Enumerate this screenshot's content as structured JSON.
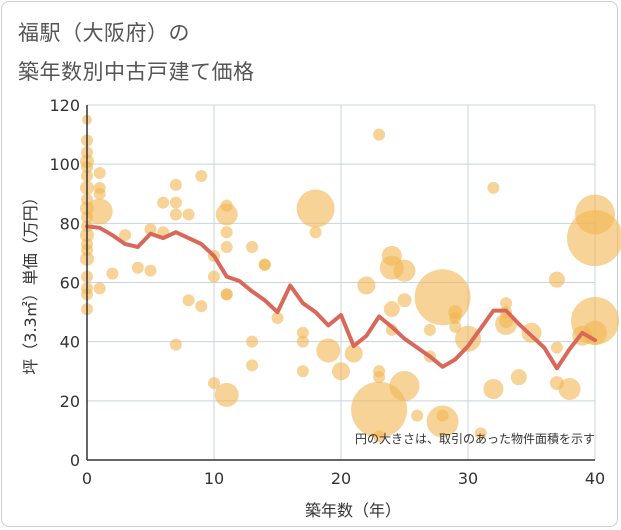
{
  "title_line1": "福駅（大阪府）の",
  "title_line2": "築年数別中古戸建て価格",
  "chart_data": {
    "type": "scatter",
    "xlabel": "築年数（年）",
    "ylabel": "坪（3.3㎡）単価（万円）",
    "xlim": [
      0,
      40
    ],
    "ylim": [
      0,
      120
    ],
    "xticks": [
      0,
      10,
      20,
      30,
      40
    ],
    "yticks": [
      0,
      20,
      40,
      60,
      80,
      100,
      120
    ],
    "grid": true,
    "annotation": "円の大きさは、取引のあった物件面積を示す",
    "colors": {
      "bubble": "#f2b552",
      "line": "#d9685a",
      "grid": "#c8d4de",
      "axis": "#333333"
    },
    "bubbles": [
      {
        "x": 0,
        "y": 115,
        "s": 5
      },
      {
        "x": 0,
        "y": 108,
        "s": 6
      },
      {
        "x": 0,
        "y": 104,
        "s": 6
      },
      {
        "x": 0,
        "y": 101,
        "s": 7
      },
      {
        "x": 0,
        "y": 99,
        "s": 6
      },
      {
        "x": 0,
        "y": 96,
        "s": 6
      },
      {
        "x": 0,
        "y": 92,
        "s": 7
      },
      {
        "x": 0,
        "y": 88,
        "s": 6
      },
      {
        "x": 0,
        "y": 85,
        "s": 7
      },
      {
        "x": 0,
        "y": 82,
        "s": 6
      },
      {
        "x": 0,
        "y": 79,
        "s": 6
      },
      {
        "x": 0,
        "y": 76,
        "s": 7
      },
      {
        "x": 0,
        "y": 73,
        "s": 6
      },
      {
        "x": 0,
        "y": 71,
        "s": 6
      },
      {
        "x": 0,
        "y": 68,
        "s": 7
      },
      {
        "x": 0,
        "y": 62,
        "s": 6
      },
      {
        "x": 0,
        "y": 58,
        "s": 6
      },
      {
        "x": 0,
        "y": 56,
        "s": 6
      },
      {
        "x": 0,
        "y": 51,
        "s": 6
      },
      {
        "x": 1,
        "y": 97,
        "s": 6
      },
      {
        "x": 1,
        "y": 92,
        "s": 6
      },
      {
        "x": 1,
        "y": 90,
        "s": 6
      },
      {
        "x": 1,
        "y": 84,
        "s": 13
      },
      {
        "x": 1,
        "y": 58,
        "s": 6
      },
      {
        "x": 2,
        "y": 63,
        "s": 6
      },
      {
        "x": 3,
        "y": 76,
        "s": 6
      },
      {
        "x": 4,
        "y": 65,
        "s": 6
      },
      {
        "x": 5,
        "y": 78,
        "s": 6
      },
      {
        "x": 5,
        "y": 64,
        "s": 6
      },
      {
        "x": 6,
        "y": 87,
        "s": 6
      },
      {
        "x": 6,
        "y": 77,
        "s": 6
      },
      {
        "x": 7,
        "y": 93,
        "s": 6
      },
      {
        "x": 7,
        "y": 87,
        "s": 6
      },
      {
        "x": 7,
        "y": 83,
        "s": 6
      },
      {
        "x": 7,
        "y": 39,
        "s": 6
      },
      {
        "x": 8,
        "y": 83,
        "s": 6
      },
      {
        "x": 8,
        "y": 54,
        "s": 6
      },
      {
        "x": 9,
        "y": 96,
        "s": 6
      },
      {
        "x": 9,
        "y": 52,
        "s": 6
      },
      {
        "x": 10,
        "y": 69,
        "s": 6
      },
      {
        "x": 10,
        "y": 62,
        "s": 6
      },
      {
        "x": 10,
        "y": 26,
        "s": 6
      },
      {
        "x": 11,
        "y": 86,
        "s": 6
      },
      {
        "x": 11,
        "y": 83,
        "s": 11
      },
      {
        "x": 11,
        "y": 77,
        "s": 6
      },
      {
        "x": 11,
        "y": 72,
        "s": 6
      },
      {
        "x": 11,
        "y": 56,
        "s": 6
      },
      {
        "x": 11,
        "y": 56,
        "s": 6
      },
      {
        "x": 11,
        "y": 22,
        "s": 12
      },
      {
        "x": 13,
        "y": 72,
        "s": 6
      },
      {
        "x": 13,
        "y": 40,
        "s": 6
      },
      {
        "x": 13,
        "y": 32,
        "s": 6
      },
      {
        "x": 14,
        "y": 66,
        "s": 6
      },
      {
        "x": 14,
        "y": 66,
        "s": 6
      },
      {
        "x": 15,
        "y": 48,
        "s": 6
      },
      {
        "x": 17,
        "y": 43,
        "s": 6
      },
      {
        "x": 17,
        "y": 40,
        "s": 6
      },
      {
        "x": 17,
        "y": 30,
        "s": 6
      },
      {
        "x": 18,
        "y": 85,
        "s": 19
      },
      {
        "x": 18,
        "y": 77,
        "s": 6
      },
      {
        "x": 19,
        "y": 37,
        "s": 12
      },
      {
        "x": 20,
        "y": 30,
        "s": 9
      },
      {
        "x": 21,
        "y": 36,
        "s": 9
      },
      {
        "x": 22,
        "y": 59,
        "s": 9
      },
      {
        "x": 23,
        "y": 110,
        "s": 6
      },
      {
        "x": 23,
        "y": 30,
        "s": 6
      },
      {
        "x": 23,
        "y": 28,
        "s": 6
      },
      {
        "x": 23,
        "y": 17,
        "s": 28
      },
      {
        "x": 23,
        "y": 8,
        "s": 6
      },
      {
        "x": 24,
        "y": 69,
        "s": 10
      },
      {
        "x": 24,
        "y": 65,
        "s": 12
      },
      {
        "x": 24,
        "y": 51,
        "s": 8
      },
      {
        "x": 24,
        "y": 44,
        "s": 6
      },
      {
        "x": 25,
        "y": 64,
        "s": 11
      },
      {
        "x": 25,
        "y": 54,
        "s": 7
      },
      {
        "x": 25,
        "y": 25,
        "s": 15
      },
      {
        "x": 26,
        "y": 15,
        "s": 6
      },
      {
        "x": 27,
        "y": 44,
        "s": 6
      },
      {
        "x": 27,
        "y": 35,
        "s": 6
      },
      {
        "x": 28,
        "y": 55,
        "s": 28
      },
      {
        "x": 28,
        "y": 13,
        "s": 16
      },
      {
        "x": 28,
        "y": 15,
        "s": 6
      },
      {
        "x": 29,
        "y": 50,
        "s": 7
      },
      {
        "x": 29,
        "y": 48,
        "s": 6
      },
      {
        "x": 29,
        "y": 45,
        "s": 6
      },
      {
        "x": 30,
        "y": 41,
        "s": 13
      },
      {
        "x": 31,
        "y": 9,
        "s": 6
      },
      {
        "x": 32,
        "y": 92,
        "s": 6
      },
      {
        "x": 32,
        "y": 24,
        "s": 10
      },
      {
        "x": 33,
        "y": 53,
        "s": 6
      },
      {
        "x": 33,
        "y": 50,
        "s": 6
      },
      {
        "x": 33,
        "y": 47,
        "s": 7
      },
      {
        "x": 33,
        "y": 46,
        "s": 11
      },
      {
        "x": 34,
        "y": 28,
        "s": 8
      },
      {
        "x": 35,
        "y": 43,
        "s": 10
      },
      {
        "x": 37,
        "y": 61,
        "s": 8
      },
      {
        "x": 37,
        "y": 38,
        "s": 6
      },
      {
        "x": 37,
        "y": 26,
        "s": 7
      },
      {
        "x": 38,
        "y": 24,
        "s": 11
      },
      {
        "x": 39,
        "y": 42,
        "s": 10
      },
      {
        "x": 40,
        "y": 83,
        "s": 20
      },
      {
        "x": 40,
        "y": 75,
        "s": 28
      },
      {
        "x": 40,
        "y": 47,
        "s": 24
      },
      {
        "x": 40,
        "y": 43,
        "s": 12
      }
    ],
    "series": [
      {
        "x": [
          0,
          1,
          2,
          3,
          4,
          5,
          6,
          7,
          8,
          9,
          10,
          11,
          12,
          13,
          14,
          15,
          16,
          17,
          18,
          19,
          20,
          21,
          22,
          23,
          24,
          25,
          26,
          27,
          28,
          29,
          30,
          31,
          32,
          33,
          34,
          35,
          36,
          37,
          38,
          39,
          40
        ],
        "values": [
          79,
          78.5,
          76,
          73,
          72,
          76.5,
          75,
          77,
          75,
          73,
          69,
          62,
          60.5,
          57,
          54,
          50,
          59,
          53,
          50,
          45.5,
          49,
          38.5,
          42,
          48.5,
          45,
          41,
          38,
          35,
          31.5,
          34,
          38.5,
          44.5,
          50.5,
          50.5,
          46,
          42,
          38,
          31,
          37.5,
          43,
          40.5
        ]
      }
    ]
  }
}
